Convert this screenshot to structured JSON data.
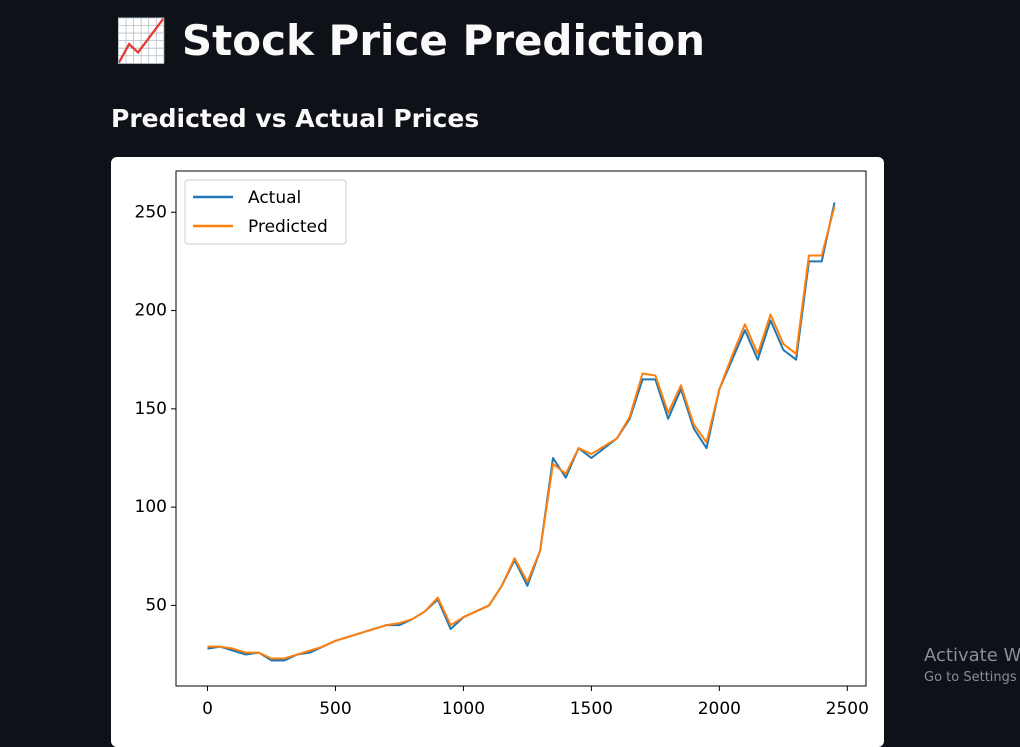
{
  "page": {
    "icon": "📈",
    "title": "Stock Price Prediction",
    "subheader": "Predicted vs Actual Prices",
    "watermark": [
      "Activate W",
      "Go to Settings"
    ]
  },
  "chart_data": {
    "type": "line",
    "x": [
      0,
      50,
      100,
      150,
      200,
      250,
      300,
      350,
      400,
      450,
      500,
      550,
      600,
      650,
      700,
      750,
      800,
      850,
      900,
      950,
      1000,
      1050,
      1100,
      1150,
      1200,
      1250,
      1300,
      1350,
      1400,
      1450,
      1500,
      1550,
      1600,
      1650,
      1700,
      1750,
      1800,
      1850,
      1900,
      1950,
      2000,
      2050,
      2100,
      2150,
      2200,
      2250,
      2300,
      2350,
      2400,
      2450
    ],
    "series": [
      {
        "name": "Actual",
        "color": "#1f77b4",
        "values": [
          28,
          29,
          27,
          25,
          26,
          22,
          22,
          25,
          26,
          29,
          32,
          34,
          36,
          38,
          40,
          40,
          43,
          47,
          53,
          38,
          44,
          47,
          50,
          60,
          73,
          60,
          78,
          125,
          115,
          130,
          125,
          130,
          135,
          145,
          165,
          165,
          145,
          160,
          140,
          130,
          160,
          175,
          190,
          175,
          195,
          180,
          175,
          225,
          225,
          255
        ]
      },
      {
        "name": "Predicted",
        "color": "#ff7f0e",
        "values": [
          29,
          29,
          28,
          26,
          26,
          23,
          23,
          25,
          27,
          29,
          32,
          34,
          36,
          38,
          40,
          41,
          43,
          47,
          54,
          40,
          44,
          47,
          50,
          60,
          74,
          62,
          78,
          122,
          117,
          130,
          127,
          131,
          135,
          146,
          168,
          167,
          148,
          162,
          142,
          133,
          160,
          177,
          193,
          178,
          198,
          183,
          178,
          228,
          228,
          253
        ]
      }
    ],
    "xlim": [
      -123,
      2573
    ],
    "ylim": [
      9,
      271
    ],
    "xticks": [
      0,
      500,
      1000,
      1500,
      2000,
      2500
    ],
    "yticks": [
      50,
      100,
      150,
      200,
      250
    ],
    "legend": "upper left"
  }
}
